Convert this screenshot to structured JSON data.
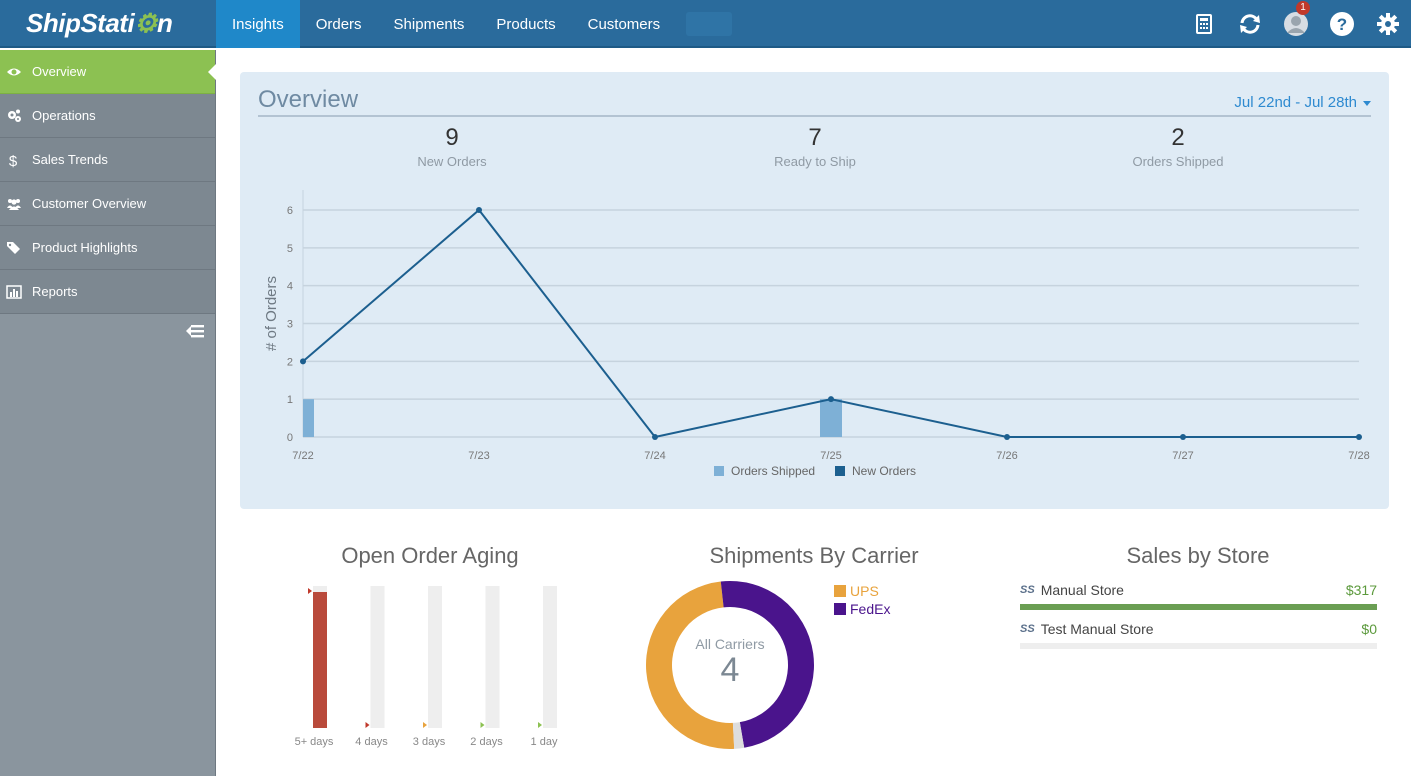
{
  "app": {
    "logo_main": "ShipStati",
    "logo_gear": "⚙",
    "logo_end": "n"
  },
  "nav": {
    "items": [
      "Insights",
      "Orders",
      "Shipments",
      "Products",
      "Customers"
    ],
    "active": 0
  },
  "top_icons": {
    "notification_count": "1"
  },
  "sidebar": {
    "items": [
      {
        "label": "Overview",
        "icon": "eye-icon",
        "active": true
      },
      {
        "label": "Operations",
        "icon": "gears-icon"
      },
      {
        "label": "Sales Trends",
        "icon": "dollar-icon"
      },
      {
        "label": "Customer Overview",
        "icon": "users-icon"
      },
      {
        "label": "Product Highlights",
        "icon": "tags-icon"
      },
      {
        "label": "Reports",
        "icon": "bar-chart-icon"
      }
    ]
  },
  "overview": {
    "title": "Overview",
    "date_range": "Jul 22nd - Jul 28th",
    "stats": [
      {
        "value": "9",
        "label": "New Orders"
      },
      {
        "value": "7",
        "label": "Ready to Ship"
      },
      {
        "value": "2",
        "label": "Orders Shipped"
      }
    ]
  },
  "chart_data": [
    {
      "type": "line",
      "ylabel": "# of Orders",
      "xlabel": "",
      "ylim": [
        0,
        6
      ],
      "yticks": [
        0,
        1,
        2,
        3,
        4,
        5,
        6
      ],
      "categories": [
        "7/22",
        "7/23",
        "7/24",
        "7/25",
        "7/26",
        "7/27",
        "7/28"
      ],
      "series": [
        {
          "name": "Orders Shipped",
          "kind": "bar",
          "color": "#7eb0d6",
          "values": [
            1,
            0,
            0,
            1,
            0,
            0,
            0
          ]
        },
        {
          "name": "New Orders",
          "kind": "line",
          "color": "#1c5f8f",
          "values": [
            2,
            6,
            0,
            1,
            0,
            0,
            0
          ]
        }
      ],
      "legend": "bottom-center",
      "grid": true
    },
    {
      "type": "bar",
      "title": "Open Order Aging",
      "categories": [
        "5+ days",
        "4 days",
        "3 days",
        "2 days",
        "1 day"
      ],
      "values": [
        1,
        0,
        0,
        0,
        0
      ],
      "marker_colors": [
        "#c0392b",
        "#c0392b",
        "#e8a33d",
        "#8cc152",
        "#8cc152"
      ],
      "bar_color": "#b94a3b"
    },
    {
      "type": "pie",
      "title": "Shipments By Carrier",
      "center_label": "All Carriers",
      "center_value": "4",
      "series": [
        {
          "name": "UPS",
          "value": 2,
          "color": "#e8a33d"
        },
        {
          "name": "FedEx",
          "value": 2,
          "color": "#4a148c"
        }
      ]
    }
  ],
  "sales_by_store": {
    "title": "Sales by Store",
    "stores": [
      {
        "badge": "SS",
        "name": "Manual Store",
        "amount": "$317",
        "fraction": 1.0
      },
      {
        "badge": "SS",
        "name": "Test Manual Store",
        "amount": "$0",
        "fraction": 0.0
      }
    ],
    "bar_color": "#6a9e53"
  }
}
